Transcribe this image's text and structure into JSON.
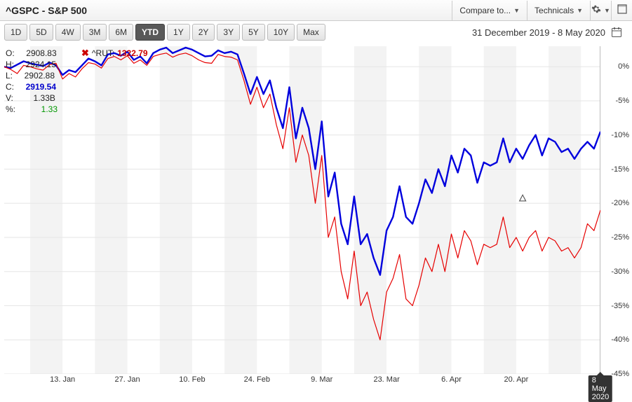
{
  "header": {
    "title": "^GSPC - S&P 500",
    "compare_label": "Compare to...",
    "technicals_label": "Technicals"
  },
  "range_buttons": [
    "1D",
    "5D",
    "4W",
    "3M",
    "6M",
    "YTD",
    "1Y",
    "2Y",
    "3Y",
    "5Y",
    "10Y",
    "Max"
  ],
  "range_active": "YTD",
  "date_range_text": "31 December 2019 - 8 May 2020",
  "ohlc": {
    "O": "2908.83",
    "H": "2924.15",
    "L": "2902.88",
    "C": "2919.54",
    "V": "1.33B",
    "pct": "1.33"
  },
  "compare": {
    "symbol": "^RUT:",
    "value": "1322.79"
  },
  "chart": {
    "type": "line",
    "y_min": -45,
    "y_max": 3,
    "y_ticks": [
      0,
      -5,
      -10,
      -15,
      -20,
      -25,
      -30,
      -35,
      -40,
      -45
    ],
    "y_tick_labels": [
      "0%",
      "-5%",
      "-10%",
      "-15%",
      "-20%",
      "-25%",
      "-30%",
      "-35%",
      "-40%",
      "-45%"
    ],
    "x_count": 93,
    "x_ticks": [
      9,
      19,
      29,
      39,
      49,
      59,
      69,
      79,
      92
    ],
    "x_labels": [
      "13. Jan",
      "27. Jan",
      "10. Feb",
      "24. Feb",
      "9. Mar",
      "23. Mar",
      "6. Apr",
      "20. Apr",
      "8 May 2020"
    ],
    "x_label_selected_index": 8,
    "bands": [
      [
        4,
        9
      ],
      [
        14,
        19
      ],
      [
        24,
        29
      ],
      [
        34,
        39
      ],
      [
        44,
        49
      ],
      [
        54,
        59
      ],
      [
        64,
        69
      ],
      [
        74,
        79
      ],
      [
        84,
        89
      ]
    ],
    "band_color": "#f3f3f3",
    "grid_color": "#e6e6e6",
    "series": [
      {
        "name": "^GSPC",
        "color": "#0000dd",
        "stroke_width": 2.4,
        "values": [
          0,
          -0.2,
          0.3,
          0.8,
          0.5,
          0.3,
          0.1,
          0.6,
          0.2,
          -1.2,
          -0.5,
          -0.8,
          0.2,
          1.2,
          0.8,
          0.2,
          1.8,
          2.0,
          1.6,
          2.2,
          1.0,
          1.5,
          0.5,
          2.0,
          2.5,
          2.8,
          2.0,
          2.4,
          2.8,
          2.5,
          2.0,
          1.5,
          1.6,
          2.4,
          2.0,
          2.2,
          1.8,
          -1.0,
          -4.0,
          -1.5,
          -4.0,
          -2.0,
          -6.0,
          -9.0,
          -3.0,
          -10.5,
          -6.0,
          -9.0,
          -15.0,
          -8.0,
          -19.0,
          -15.5,
          -23.0,
          -26.0,
          -19.0,
          -26.0,
          -24.5,
          -28.0,
          -30.5,
          -24.0,
          -22.0,
          -17.5,
          -22.0,
          -23.0,
          -20.0,
          -16.5,
          -18.5,
          -15.0,
          -17.5,
          -13.0,
          -15.5,
          -12.0,
          -13.0,
          -17.0,
          -14.0,
          -14.5,
          -14.0,
          -10.5,
          -14.0,
          -12.0,
          -13.5,
          -11.5,
          -10.0,
          -13.0,
          -10.5,
          -11.0,
          -12.5,
          -12.0,
          -13.5,
          -12.0,
          -11.0,
          -12.0,
          -9.5
        ]
      },
      {
        "name": "^RUT",
        "color": "#e60000",
        "stroke_width": 1.2,
        "values": [
          0,
          -0.4,
          -1.0,
          0.2,
          0.0,
          -0.3,
          -0.5,
          0.3,
          0.5,
          -1.8,
          -1.0,
          -1.5,
          -0.3,
          0.6,
          0.4,
          -0.2,
          1.2,
          1.5,
          1.0,
          1.6,
          0.5,
          1.0,
          0.2,
          1.5,
          1.8,
          2.0,
          1.4,
          1.8,
          2.0,
          1.6,
          1.0,
          0.6,
          0.5,
          1.8,
          1.5,
          1.4,
          1.0,
          -2.0,
          -5.5,
          -3.0,
          -6.0,
          -4.0,
          -8.5,
          -12.0,
          -6.0,
          -14.0,
          -10.0,
          -13.0,
          -20.0,
          -13.0,
          -25.0,
          -22.0,
          -30.0,
          -34.0,
          -27.0,
          -35.0,
          -33.0,
          -37.0,
          -40.0,
          -33.0,
          -31.0,
          -27.5,
          -34.0,
          -35.0,
          -32.0,
          -28.0,
          -30.0,
          -26.0,
          -30.0,
          -24.5,
          -28.0,
          -24.0,
          -25.5,
          -29.0,
          -26.0,
          -26.5,
          -26.0,
          -22.0,
          -26.5,
          -25.0,
          -27.0,
          -25.0,
          -24.0,
          -27.0,
          -25.0,
          -25.5,
          -27.0,
          -26.5,
          -28.0,
          -26.5,
          -23.0,
          -24.0,
          -21.0
        ]
      }
    ],
    "flame_marker": {
      "x_index": 80,
      "y_value": -19
    }
  }
}
